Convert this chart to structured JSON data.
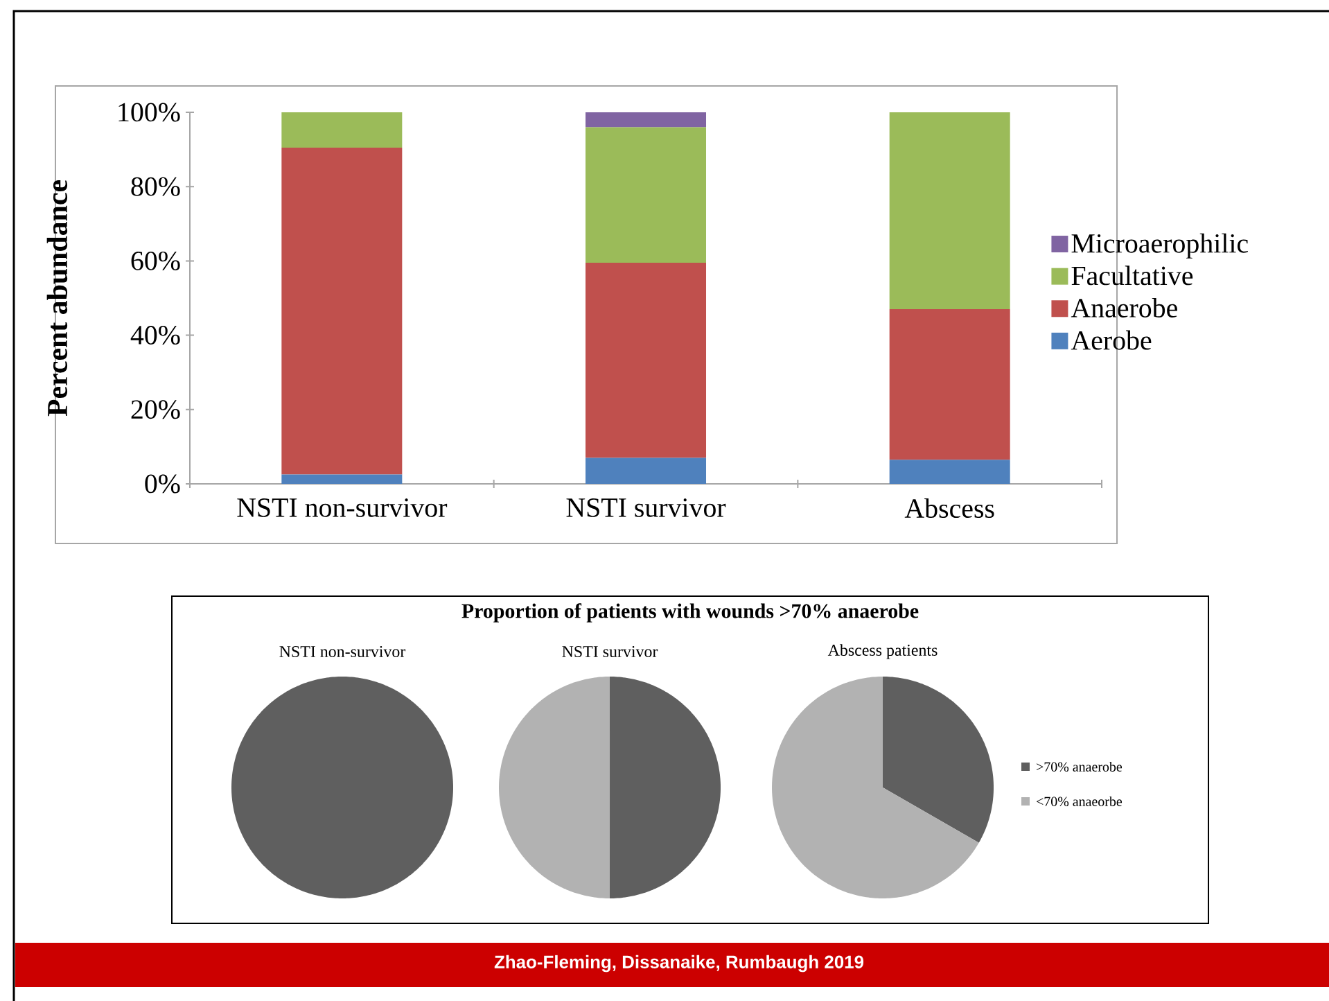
{
  "chart_data": [
    {
      "type": "bar",
      "stacked": true,
      "ylabel": "Percent abundance",
      "categories": [
        "NSTI non-survivor",
        "NSTI survivor",
        "Abscess"
      ],
      "series": [
        {
          "name": "Aerobe",
          "color": "#4f81bd",
          "values": [
            2.5,
            7,
            6.5
          ]
        },
        {
          "name": "Anaerobe",
          "color": "#c0504d",
          "values": [
            88,
            52.5,
            40.5
          ]
        },
        {
          "name": "Facultative",
          "color": "#9bbb59",
          "values": [
            9.5,
            36.5,
            53
          ]
        },
        {
          "name": "Microaerophilic",
          "color": "#8064a2",
          "values": [
            0,
            4,
            0
          ]
        }
      ],
      "ylim": [
        0,
        100
      ],
      "yticks": [
        {
          "value": 0,
          "label": "0%"
        },
        {
          "value": 20,
          "label": "20%"
        },
        {
          "value": 40,
          "label": "40%"
        },
        {
          "value": 60,
          "label": "60%"
        },
        {
          "value": 80,
          "label": "80%"
        },
        {
          "value": 100,
          "label": "100%"
        }
      ],
      "legend": "right",
      "grid": false
    },
    {
      "type": "pie",
      "subtitle": "NSTI non-survivor",
      "categories": [
        null,
        null
      ],
      "values": [
        100,
        0
      ],
      "colors": [
        "#5f5f5f",
        "#b2b2b2"
      ],
      "legend": false
    },
    {
      "type": "pie",
      "title": "Proportion of patients with wounds >70% anaerobe",
      "subtitle": "NSTI survivor",
      "categories": [
        null,
        null
      ],
      "values": [
        50,
        50
      ],
      "colors": [
        "#5f5f5f",
        "#b2b2b2"
      ],
      "legend": false
    },
    {
      "type": "pie",
      "subtitle": "Abscess patients",
      "categories": [
        ">70% anaerobe",
        "<70% anaeorbe"
      ],
      "values": [
        33.3,
        66.7
      ],
      "colors": [
        "#5f5f5f",
        "#b2b2b2"
      ],
      "legend": "right",
      "annotations": [
        "Zhao-Fleming, Dissanaike, Rumbaugh 2019"
      ]
    }
  ]
}
